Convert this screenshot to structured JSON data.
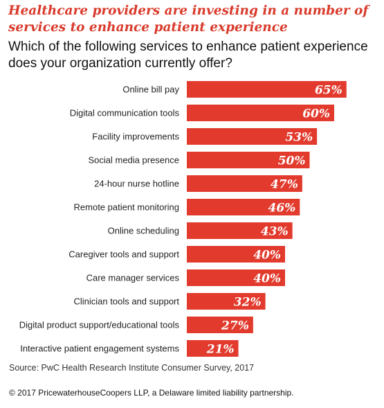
{
  "title": "Healthcare providers are investing in a number of services to enhance patient experience",
  "subtitle": "Which of the following services to enhance patient experience does your organization currently offer?",
  "source": "Source: PwC Health Research Institute Consumer Survey, 2017",
  "copyright": "© 2017 PricewaterhouseCoopers LLP, a Delaware limited liability partnership.",
  "colors": {
    "bar": "#e23b2e",
    "title": "#d93a2b",
    "label": "#222222",
    "value": "#ffffff"
  },
  "chart_data": {
    "type": "bar",
    "orientation": "horizontal",
    "categories": [
      "Online bill pay",
      "Digital communication tools",
      "Facility improvements",
      "Social media presence",
      "24-hour nurse hotline",
      "Remote patient monitoring",
      "Online scheduling",
      "Caregiver tools and support",
      "Care manager services",
      "Clinician tools and support",
      "Digital product support/educational tools",
      "Interactive patient engagement systems"
    ],
    "values": [
      65,
      60,
      53,
      50,
      47,
      46,
      43,
      40,
      40,
      32,
      27,
      21
    ],
    "value_labels": [
      "65%",
      "60%",
      "53%",
      "50%",
      "47%",
      "46%",
      "43%",
      "40%",
      "40%",
      "32%",
      "27%",
      "21%"
    ],
    "unit": "%",
    "xlim": [
      0,
      100
    ],
    "grid": false,
    "legend": "none"
  }
}
